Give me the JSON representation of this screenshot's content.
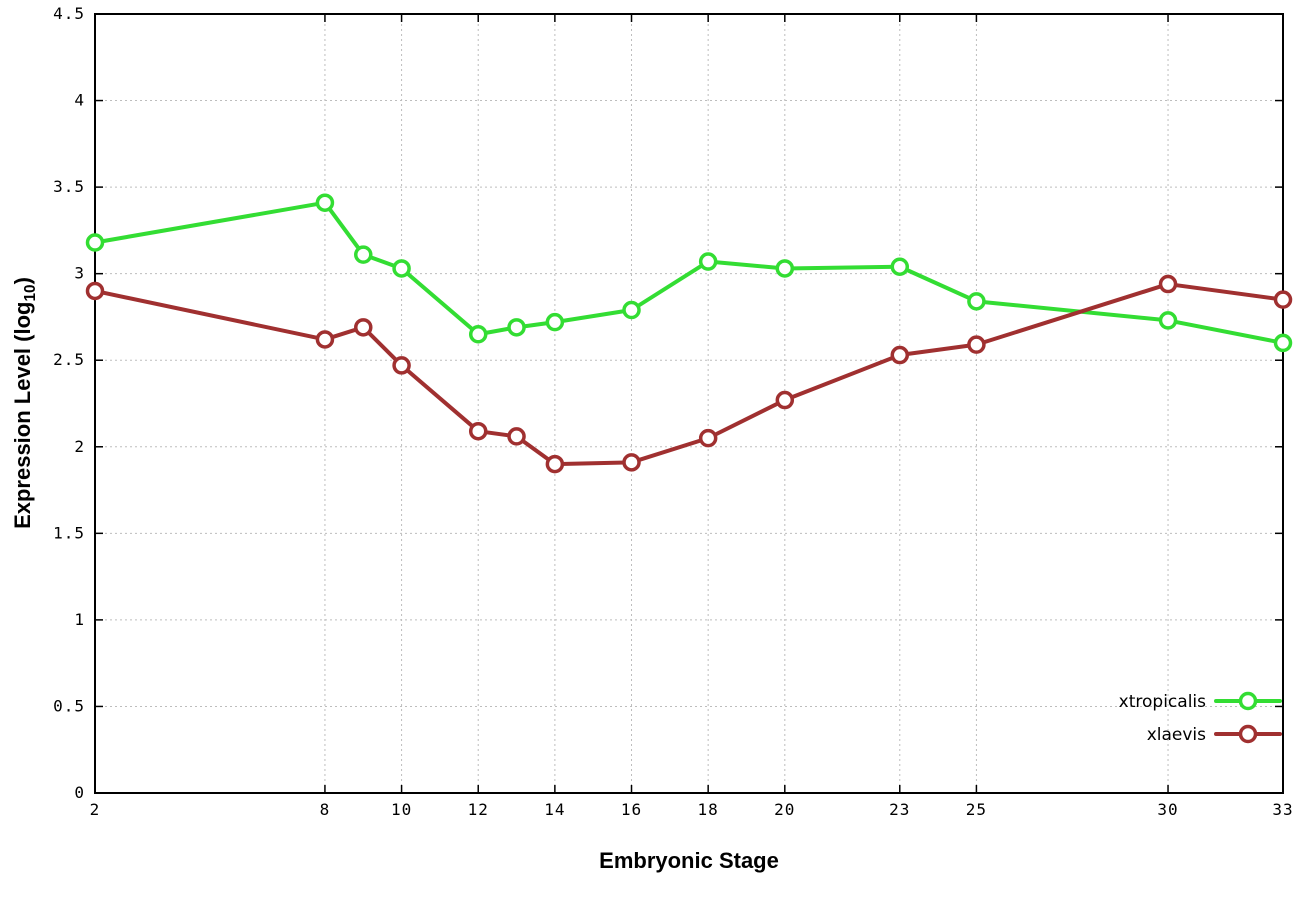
{
  "chart_data": {
    "type": "line",
    "title": "",
    "xlabel": "Embryonic Stage",
    "ylabel_prefix": "Expression Level (log",
    "ylabel_sub": "10",
    "ylabel_suffix": ")",
    "xlim": [
      2,
      33
    ],
    "ylim": [
      0,
      4.5
    ],
    "x_ticks": [
      2,
      8,
      10,
      12,
      14,
      16,
      18,
      20,
      23,
      25,
      30,
      33
    ],
    "y_ticks": [
      0,
      0.5,
      1,
      1.5,
      2,
      2.5,
      3,
      3.5,
      4,
      4.5
    ],
    "grid": true,
    "legend_position": "bottom-right",
    "marker": "circle-open",
    "background_color": "#ffffff",
    "border_color": "#000000",
    "grid_color": "#bdbdbd",
    "x": [
      2,
      8,
      9,
      10,
      12,
      13,
      14,
      16,
      18,
      20,
      23,
      25,
      30,
      33
    ],
    "series": [
      {
        "name": "xtropicalis",
        "color": "#33dd33",
        "values": [
          3.18,
          3.41,
          3.11,
          3.03,
          2.65,
          2.69,
          2.72,
          2.79,
          3.07,
          3.03,
          3.04,
          2.84,
          2.73,
          2.6
        ]
      },
      {
        "name": "xlaevis",
        "color": "#a03030",
        "values": [
          2.9,
          2.62,
          2.69,
          2.47,
          2.09,
          2.06,
          1.9,
          1.91,
          2.05,
          2.27,
          2.53,
          2.59,
          2.94,
          2.85
        ]
      }
    ]
  }
}
